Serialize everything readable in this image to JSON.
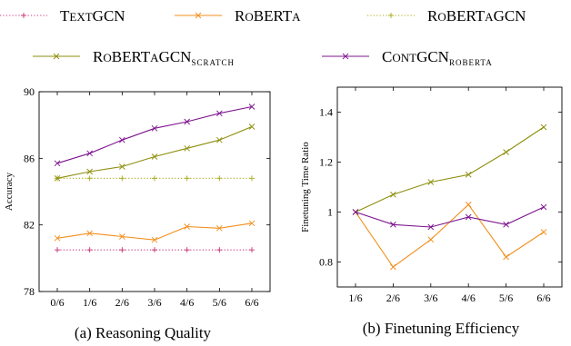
{
  "legend": [
    {
      "label_main": "TextGCN",
      "label_sub": "",
      "color": "#c8327a",
      "style": "dotted",
      "marker": "plus"
    },
    {
      "label_main": "RoBERTa",
      "label_sub": "",
      "color": "#f28e1c",
      "style": "solid",
      "marker": "x"
    },
    {
      "label_main": "RoBERTaGCN",
      "label_sub": "",
      "color": "#a8a816",
      "style": "dotted",
      "marker": "plus"
    },
    {
      "label_main": "RoBERTaGCN",
      "label_sub": "scratch",
      "color": "#8e8e0e",
      "style": "solid",
      "marker": "x"
    },
    {
      "label_main": "ContGCN",
      "label_sub": "RoBERTa",
      "color": "#7d148e",
      "style": "solid",
      "marker": "x"
    }
  ],
  "chart_data": [
    {
      "type": "line",
      "caption": "(a) Reasoning Quality",
      "ylabel": "Accuracy",
      "xlabel": "",
      "categories": [
        "0/6",
        "1/6",
        "2/6",
        "3/6",
        "4/6",
        "5/6",
        "6/6"
      ],
      "ylim": [
        78,
        90
      ],
      "yticks": [
        78,
        82,
        86,
        90
      ],
      "grid": false,
      "series": [
        {
          "name": "TextGCN",
          "color": "#c8327a",
          "style": "dotted",
          "marker": "plus",
          "values": [
            80.5,
            80.5,
            80.5,
            80.5,
            80.5,
            80.5,
            80.5
          ]
        },
        {
          "name": "RoBERTa",
          "color": "#f28e1c",
          "style": "solid",
          "marker": "x",
          "values": [
            81.2,
            81.5,
            81.3,
            81.1,
            81.9,
            81.8,
            82.1
          ]
        },
        {
          "name": "RoBERTaGCN",
          "color": "#a8a816",
          "style": "dotted",
          "marker": "plus",
          "values": [
            84.8,
            84.8,
            84.8,
            84.8,
            84.8,
            84.8,
            84.8
          ]
        },
        {
          "name": "RoBERTaGCN scratch",
          "color": "#8e8e0e",
          "style": "solid",
          "marker": "x",
          "values": [
            84.8,
            85.2,
            85.5,
            86.1,
            86.6,
            87.1,
            87.9
          ]
        },
        {
          "name": "ContGCN RoBERTa",
          "color": "#7d148e",
          "style": "solid",
          "marker": "x",
          "values": [
            85.7,
            86.3,
            87.1,
            87.8,
            88.2,
            88.7,
            89.1
          ]
        }
      ]
    },
    {
      "type": "line",
      "caption": "(b) Finetuning Efficiency",
      "ylabel": "Finetuning Time Ratio",
      "xlabel": "",
      "categories": [
        "1/6",
        "2/6",
        "3/6",
        "4/6",
        "5/6",
        "6/6"
      ],
      "ylim": [
        0.7,
        1.5
      ],
      "yticks": [
        0.8,
        1.0,
        1.2,
        1.4
      ],
      "ytick_labels": [
        "0.8",
        "1",
        "1.2",
        "1.4"
      ],
      "grid": false,
      "series": [
        {
          "name": "RoBERTa",
          "color": "#f28e1c",
          "style": "solid",
          "marker": "x",
          "values": [
            1.0,
            0.78,
            0.89,
            1.03,
            0.82,
            0.92
          ]
        },
        {
          "name": "RoBERTaGCN scratch",
          "color": "#8e8e0e",
          "style": "solid",
          "marker": "x",
          "values": [
            1.0,
            1.07,
            1.12,
            1.15,
            1.24,
            1.34
          ]
        },
        {
          "name": "ContGCN RoBERTa",
          "color": "#7d148e",
          "style": "solid",
          "marker": "x",
          "values": [
            1.0,
            0.95,
            0.94,
            0.98,
            0.95,
            1.02
          ]
        }
      ]
    }
  ]
}
